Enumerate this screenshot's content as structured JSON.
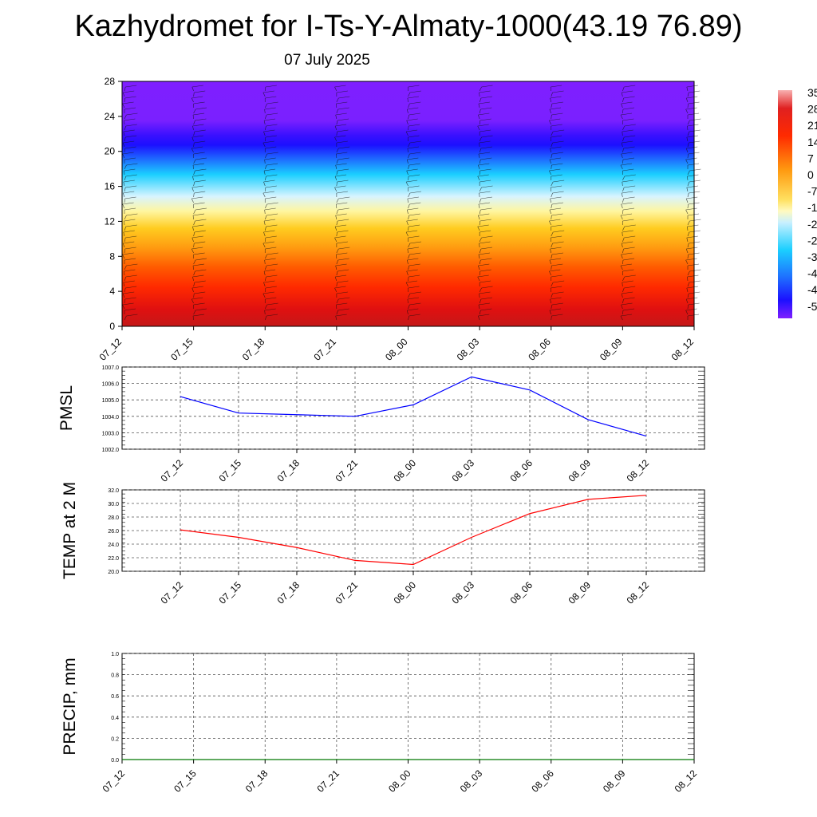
{
  "header": {
    "title": "Kazhydromet for I-Ts-Y-Almaty-1000(43.19 76.89)",
    "date": "07 July 2025"
  },
  "colors": {
    "pmsl_line": "#0000ff",
    "temp_line": "#ff0000",
    "precip_line": "#007700",
    "grid": "#555555",
    "cross_section_colormap": [
      "#7f1fff",
      "#1c10ff",
      "#1bcfff",
      "#fff6a0",
      "#ff9a10",
      "#ff2a00",
      "#c41818",
      "#f8b0b0"
    ]
  },
  "chart_data": [
    {
      "type": "heatmap",
      "id": "cross-section",
      "title": "",
      "xlabel": "",
      "ylabel": "",
      "x_tick_labels": [
        "07_12",
        "07_15",
        "07_18",
        "07_21",
        "08_00",
        "08_03",
        "08_06",
        "08_09",
        "08_12"
      ],
      "y_ticks": [
        0,
        4,
        8,
        12,
        16,
        20,
        24,
        28
      ],
      "ylim": [
        0,
        28
      ],
      "colorbar_labels": [
        "35",
        "28",
        "21",
        "14",
        "7",
        "0",
        "-7",
        "-1",
        "-2",
        "-2",
        "-3",
        "-4",
        "-4",
        "-5"
      ],
      "wind_barbs": true
    },
    {
      "type": "line",
      "id": "pmsl",
      "ylabel": "PMSL",
      "x": [
        "07_12",
        "07_15",
        "07_18",
        "07_21",
        "08_00",
        "08_03",
        "08_06",
        "08_09",
        "08_12"
      ],
      "values": [
        1005.2,
        1004.2,
        1004.1,
        1004.0,
        1004.7,
        1006.4,
        1005.6,
        1003.8,
        1002.8
      ],
      "ylim": [
        1002.0,
        1007.0
      ],
      "y_tick_labels": [
        "1002.0",
        "1003.0",
        "1004.0",
        "1005.0",
        "1006.0",
        "1007.0"
      ],
      "grid": true
    },
    {
      "type": "line",
      "id": "temp",
      "ylabel": "TEMP at 2 M",
      "x": [
        "07_12",
        "07_15",
        "07_18",
        "07_21",
        "08_00",
        "08_03",
        "08_06",
        "08_09",
        "08_12"
      ],
      "values": [
        26.1,
        25.0,
        23.5,
        21.6,
        21.0,
        25.0,
        28.5,
        30.6,
        31.2
      ],
      "ylim": [
        20.0,
        32.0
      ],
      "y_tick_labels": [
        "20.0",
        "22.0",
        "24.0",
        "26.0",
        "28.0",
        "30.0",
        "32.0"
      ],
      "grid": true
    },
    {
      "type": "line",
      "id": "precip",
      "ylabel": "PRECIP, mm",
      "x_tick_labels": [
        "07_12",
        "07_15",
        "07_18",
        "07_21",
        "08_00",
        "08_03",
        "08_06",
        "08_09",
        "08_12"
      ],
      "values": [
        0,
        0,
        0,
        0,
        0,
        0,
        0,
        0,
        0
      ],
      "ylim": [
        0.0,
        1.0
      ],
      "y_tick_labels": [
        "0.0",
        "0.2",
        "0.4",
        "0.6",
        "0.8",
        "1.0"
      ],
      "grid": true
    }
  ]
}
